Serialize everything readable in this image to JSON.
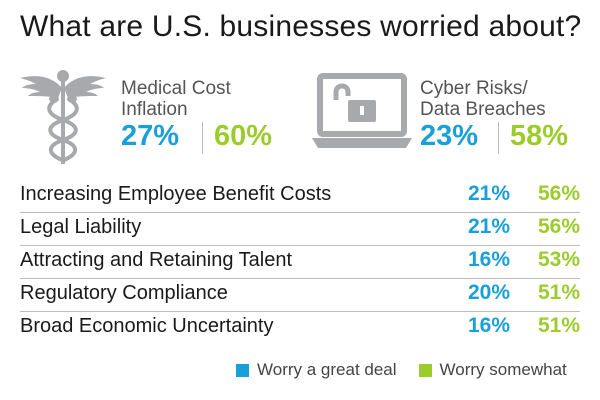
{
  "title": "What are U.S. businesses worried about?",
  "colors": {
    "great_deal": "#1aa0d8",
    "somewhat": "#9ccc2c",
    "icon": "#a7a9ac"
  },
  "features": [
    {
      "icon": "caduceus-icon",
      "label_line1": "Medical Cost",
      "label_line2": "Inflation",
      "great_deal": "27%",
      "somewhat": "60%"
    },
    {
      "icon": "laptop-unlocked-icon",
      "label_line1": "Cyber Risks/",
      "label_line2": "Data Breaches",
      "great_deal": "23%",
      "somewhat": "58%"
    }
  ],
  "chart_data": {
    "type": "table",
    "title": "What are U.S. businesses worried about?",
    "series": [
      {
        "name": "Worry a great deal"
      },
      {
        "name": "Worry somewhat"
      }
    ],
    "rows": [
      {
        "category": "Medical Cost Inflation",
        "great_deal": 27,
        "somewhat": 60
      },
      {
        "category": "Cyber Risks/Data Breaches",
        "great_deal": 23,
        "somewhat": 58
      },
      {
        "category": "Increasing Employee Benefit Costs",
        "great_deal": 21,
        "somewhat": 56,
        "great_deal_label": "21%",
        "somewhat_label": "56%"
      },
      {
        "category": "Legal Liability",
        "great_deal": 21,
        "somewhat": 56,
        "great_deal_label": "21%",
        "somewhat_label": "56%"
      },
      {
        "category": "Attracting and Retaining Talent",
        "great_deal": 16,
        "somewhat": 53,
        "great_deal_label": "16%",
        "somewhat_label": "53%"
      },
      {
        "category": "Regulatory Compliance",
        "great_deal": 20,
        "somewhat": 51,
        "great_deal_label": "20%",
        "somewhat_label": "51%"
      },
      {
        "category": "Broad Economic Uncertainty",
        "great_deal": 16,
        "somewhat": 51,
        "great_deal_label": "16%",
        "somewhat_label": "51%"
      }
    ],
    "legend": [
      {
        "label": "Worry a great deal",
        "color": "#1aa0d8"
      },
      {
        "label": "Worry somewhat",
        "color": "#9ccc2c"
      }
    ],
    "legend_position": "bottom-right"
  }
}
